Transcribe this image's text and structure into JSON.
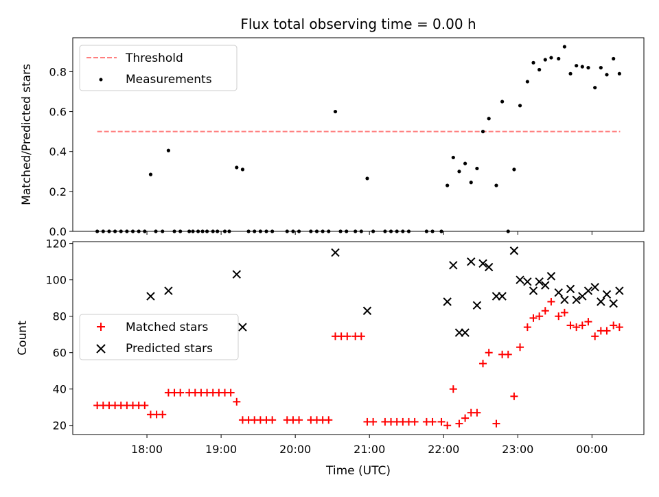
{
  "figure": {
    "title": "Flux total observing time = 0.00 h",
    "xlabel": "Time (UTC)",
    "x_tick_labels": [
      "18:00",
      "19:00",
      "20:00",
      "21:00",
      "22:00",
      "23:00",
      "00:00"
    ]
  },
  "chart_data": [
    {
      "type": "scatter",
      "ylabel": "Matched/Predicted stars",
      "xlim_hours": [
        17.0,
        24.7
      ],
      "ylim": [
        0,
        0.97
      ],
      "x_ticks": [
        18,
        19,
        20,
        21,
        22,
        23,
        24
      ],
      "y_ticks": [
        0.0,
        0.2,
        0.4,
        0.6,
        0.8
      ],
      "y_tick_labels": [
        "0.0",
        "0.2",
        "0.4",
        "0.6",
        "0.8"
      ],
      "legend": {
        "position": "top-left",
        "entries": [
          "Threshold",
          "Measurements"
        ]
      },
      "threshold": {
        "name": "Threshold",
        "value": 0.5,
        "x_range": [
          17.33,
          24.38
        ],
        "color": "#ff7f7f",
        "style": "dashed"
      },
      "series": [
        {
          "name": "Measurements",
          "marker": "dot",
          "color": "#000000",
          "points": [
            [
              17.33,
              0
            ],
            [
              17.41,
              0
            ],
            [
              17.49,
              0
            ],
            [
              17.57,
              0
            ],
            [
              17.65,
              0
            ],
            [
              17.73,
              0
            ],
            [
              17.81,
              0
            ],
            [
              17.89,
              0
            ],
            [
              17.97,
              0
            ],
            [
              18.05,
              0.285
            ],
            [
              18.12,
              0
            ],
            [
              18.21,
              0
            ],
            [
              18.29,
              0.405
            ],
            [
              18.37,
              0
            ],
            [
              18.45,
              0
            ],
            [
              18.57,
              0
            ],
            [
              18.62,
              0
            ],
            [
              18.69,
              0
            ],
            [
              18.75,
              0
            ],
            [
              18.81,
              0
            ],
            [
              18.89,
              0
            ],
            [
              18.95,
              0
            ],
            [
              19.05,
              0
            ],
            [
              19.11,
              0
            ],
            [
              19.21,
              0.32
            ],
            [
              19.29,
              0.31
            ],
            [
              19.37,
              0
            ],
            [
              19.45,
              0
            ],
            [
              19.53,
              0
            ],
            [
              19.61,
              0
            ],
            [
              19.69,
              0
            ],
            [
              19.89,
              0
            ],
            [
              19.97,
              0
            ],
            [
              20.05,
              0
            ],
            [
              20.21,
              0
            ],
            [
              20.29,
              0
            ],
            [
              20.37,
              0
            ],
            [
              20.45,
              0
            ],
            [
              20.54,
              0.6
            ],
            [
              20.61,
              0
            ],
            [
              20.69,
              0
            ],
            [
              20.81,
              0
            ],
            [
              20.89,
              0
            ],
            [
              20.97,
              0.265
            ],
            [
              21.05,
              0
            ],
            [
              21.21,
              0
            ],
            [
              21.29,
              0
            ],
            [
              21.37,
              0
            ],
            [
              21.45,
              0
            ],
            [
              21.53,
              0
            ],
            [
              21.77,
              0
            ],
            [
              21.85,
              0
            ],
            [
              21.97,
              0
            ],
            [
              22.05,
              0.23
            ],
            [
              22.13,
              0.37
            ],
            [
              22.21,
              0.3
            ],
            [
              22.29,
              0.34
            ],
            [
              22.37,
              0.245
            ],
            [
              22.45,
              0.315
            ],
            [
              22.53,
              0.5
            ],
            [
              22.61,
              0.565
            ],
            [
              22.71,
              0.23
            ],
            [
              22.79,
              0.65
            ],
            [
              22.87,
              0
            ],
            [
              22.95,
              0.31
            ],
            [
              23.03,
              0.63
            ],
            [
              23.13,
              0.75
            ],
            [
              23.21,
              0.845
            ],
            [
              23.29,
              0.81
            ],
            [
              23.37,
              0.86
            ],
            [
              23.45,
              0.87
            ],
            [
              23.55,
              0.865
            ],
            [
              23.63,
              0.925
            ],
            [
              23.71,
              0.79
            ],
            [
              23.79,
              0.83
            ],
            [
              23.87,
              0.825
            ],
            [
              23.95,
              0.82
            ],
            [
              24.04,
              0.72
            ],
            [
              24.12,
              0.82
            ],
            [
              24.2,
              0.785
            ],
            [
              24.29,
              0.865
            ],
            [
              24.37,
              0.79
            ]
          ]
        }
      ]
    },
    {
      "type": "scatter",
      "ylabel": "Count",
      "xlim_hours": [
        17.0,
        24.7
      ],
      "ylim": [
        15,
        121
      ],
      "x_ticks": [
        18,
        19,
        20,
        21,
        22,
        23,
        24
      ],
      "y_ticks": [
        20,
        40,
        60,
        80,
        100,
        120
      ],
      "y_tick_labels": [
        "20",
        "40",
        "60",
        "80",
        "100",
        "120"
      ],
      "legend": {
        "position": "center-left",
        "entries": [
          "Matched stars",
          "Predicted stars"
        ]
      },
      "series": [
        {
          "name": "Matched stars",
          "marker": "plus",
          "color": "#ff0000",
          "points": [
            [
              17.33,
              31
            ],
            [
              17.41,
              31
            ],
            [
              17.49,
              31
            ],
            [
              17.57,
              31
            ],
            [
              17.65,
              31
            ],
            [
              17.73,
              31
            ],
            [
              17.81,
              31
            ],
            [
              17.89,
              31
            ],
            [
              17.97,
              31
            ],
            [
              18.05,
              26
            ],
            [
              18.13,
              26
            ],
            [
              18.21,
              26
            ],
            [
              18.29,
              38
            ],
            [
              18.37,
              38
            ],
            [
              18.45,
              38
            ],
            [
              18.57,
              38
            ],
            [
              18.65,
              38
            ],
            [
              18.73,
              38
            ],
            [
              18.81,
              38
            ],
            [
              18.89,
              38
            ],
            [
              18.97,
              38
            ],
            [
              19.05,
              38
            ],
            [
              19.13,
              38
            ],
            [
              19.21,
              33
            ],
            [
              19.29,
              23
            ],
            [
              19.37,
              23
            ],
            [
              19.45,
              23
            ],
            [
              19.53,
              23
            ],
            [
              19.61,
              23
            ],
            [
              19.69,
              23
            ],
            [
              19.89,
              23
            ],
            [
              19.97,
              23
            ],
            [
              20.05,
              23
            ],
            [
              20.21,
              23
            ],
            [
              20.29,
              23
            ],
            [
              20.37,
              23
            ],
            [
              20.45,
              23
            ],
            [
              20.54,
              69
            ],
            [
              20.62,
              69
            ],
            [
              20.7,
              69
            ],
            [
              20.81,
              69
            ],
            [
              20.89,
              69
            ],
            [
              20.97,
              22
            ],
            [
              21.05,
              22
            ],
            [
              21.21,
              22
            ],
            [
              21.29,
              22
            ],
            [
              21.37,
              22
            ],
            [
              21.45,
              22
            ],
            [
              21.53,
              22
            ],
            [
              21.61,
              22
            ],
            [
              21.77,
              22
            ],
            [
              21.85,
              22
            ],
            [
              21.97,
              22
            ],
            [
              22.05,
              20
            ],
            [
              22.13,
              40
            ],
            [
              22.21,
              21
            ],
            [
              22.29,
              24
            ],
            [
              22.37,
              27
            ],
            [
              22.45,
              27
            ],
            [
              22.53,
              54
            ],
            [
              22.61,
              60
            ],
            [
              22.71,
              21
            ],
            [
              22.79,
              59
            ],
            [
              22.87,
              59
            ],
            [
              22.95,
              36
            ],
            [
              23.03,
              63
            ],
            [
              23.13,
              74
            ],
            [
              23.21,
              79
            ],
            [
              23.29,
              80
            ],
            [
              23.37,
              83
            ],
            [
              23.45,
              88
            ],
            [
              23.55,
              80
            ],
            [
              23.63,
              82
            ],
            [
              23.71,
              75
            ],
            [
              23.79,
              74
            ],
            [
              23.87,
              75
            ],
            [
              23.95,
              77
            ],
            [
              24.04,
              69
            ],
            [
              24.12,
              72
            ],
            [
              24.2,
              72
            ],
            [
              24.29,
              75
            ],
            [
              24.37,
              74
            ]
          ]
        },
        {
          "name": "Predicted stars",
          "marker": "x",
          "color": "#000000",
          "points": [
            [
              18.05,
              91
            ],
            [
              18.29,
              94
            ],
            [
              19.21,
              103
            ],
            [
              19.29,
              74
            ],
            [
              20.54,
              115
            ],
            [
              20.97,
              83
            ],
            [
              22.05,
              88
            ],
            [
              22.13,
              108
            ],
            [
              22.21,
              71
            ],
            [
              22.29,
              71
            ],
            [
              22.37,
              110
            ],
            [
              22.45,
              86
            ],
            [
              22.53,
              109
            ],
            [
              22.61,
              107
            ],
            [
              22.71,
              91
            ],
            [
              22.79,
              91
            ],
            [
              22.95,
              116
            ],
            [
              23.03,
              100
            ],
            [
              23.13,
              99
            ],
            [
              23.21,
              94
            ],
            [
              23.29,
              99
            ],
            [
              23.37,
              97
            ],
            [
              23.45,
              102
            ],
            [
              23.55,
              93
            ],
            [
              23.63,
              89
            ],
            [
              23.71,
              95
            ],
            [
              23.79,
              89
            ],
            [
              23.87,
              91
            ],
            [
              23.95,
              94
            ],
            [
              24.04,
              96
            ],
            [
              24.12,
              88
            ],
            [
              24.2,
              92
            ],
            [
              24.29,
              87
            ],
            [
              24.37,
              94
            ]
          ]
        }
      ]
    }
  ]
}
